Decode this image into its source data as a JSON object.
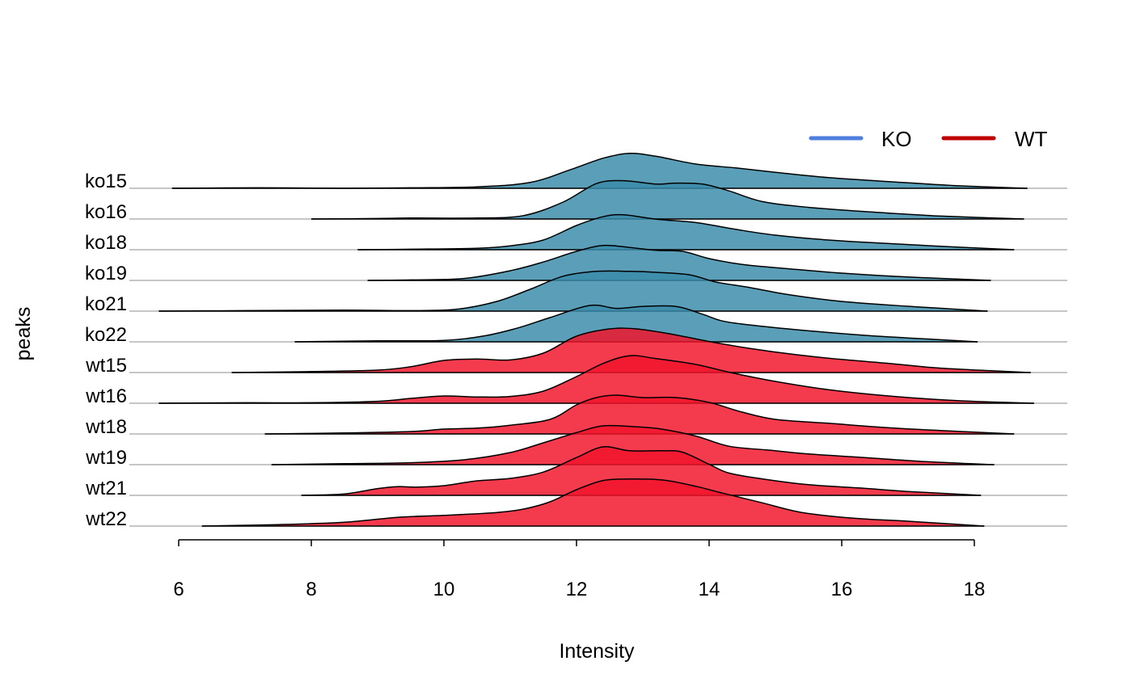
{
  "chart_data": {
    "type": "ridgeline",
    "xlabel": "Intensity",
    "ylabel": "peaks",
    "xlim": [
      5.75,
      19.45
    ],
    "xticks": [
      6,
      8,
      10,
      12,
      14,
      16,
      18
    ],
    "grid": false,
    "legend_position": "top-right",
    "legend": [
      {
        "name": "KO",
        "color": "#4f7fde"
      },
      {
        "name": "WT",
        "color": "#c00000"
      }
    ],
    "group_fill": {
      "KO": "#3a8aa8",
      "WT": "#f2132a"
    },
    "rows": [
      {
        "name": "ko15",
        "group": "KO",
        "range": [
          5.9,
          18.8
        ],
        "points": [
          [
            5.9,
            0
          ],
          [
            7.2,
            0.01
          ],
          [
            8.5,
            0
          ],
          [
            9.5,
            0.01
          ],
          [
            10.5,
            0.03
          ],
          [
            11.3,
            0.12
          ],
          [
            11.9,
            0.38
          ],
          [
            12.4,
            0.62
          ],
          [
            12.8,
            0.72
          ],
          [
            13.2,
            0.66
          ],
          [
            13.8,
            0.5
          ],
          [
            14.4,
            0.42
          ],
          [
            15.0,
            0.33
          ],
          [
            15.8,
            0.22
          ],
          [
            16.8,
            0.13
          ],
          [
            17.8,
            0.05
          ],
          [
            18.8,
            0
          ]
        ]
      },
      {
        "name": "ko16",
        "group": "KO",
        "range": [
          8.0,
          18.75
        ],
        "points": [
          [
            8.0,
            0
          ],
          [
            9.0,
            0.01
          ],
          [
            9.5,
            0.02
          ],
          [
            10.5,
            0.02
          ],
          [
            11.2,
            0.07
          ],
          [
            11.8,
            0.35
          ],
          [
            12.3,
            0.73
          ],
          [
            12.7,
            0.79
          ],
          [
            13.2,
            0.72
          ],
          [
            13.5,
            0.74
          ],
          [
            13.9,
            0.72
          ],
          [
            14.3,
            0.58
          ],
          [
            14.8,
            0.36
          ],
          [
            15.5,
            0.24
          ],
          [
            16.5,
            0.14
          ],
          [
            17.5,
            0.06
          ],
          [
            18.75,
            0
          ]
        ]
      },
      {
        "name": "ko18",
        "group": "KO",
        "range": [
          8.7,
          18.6
        ],
        "points": [
          [
            8.7,
            0
          ],
          [
            9.5,
            0.01
          ],
          [
            10.5,
            0.03
          ],
          [
            11.0,
            0.08
          ],
          [
            11.5,
            0.2
          ],
          [
            12.0,
            0.5
          ],
          [
            12.4,
            0.68
          ],
          [
            12.7,
            0.72
          ],
          [
            13.2,
            0.63
          ],
          [
            13.8,
            0.56
          ],
          [
            14.4,
            0.42
          ],
          [
            15.0,
            0.3
          ],
          [
            15.8,
            0.2
          ],
          [
            16.8,
            0.12
          ],
          [
            17.8,
            0.05
          ],
          [
            18.6,
            0
          ]
        ]
      },
      {
        "name": "ko19",
        "group": "KO",
        "range": [
          8.85,
          18.25
        ],
        "points": [
          [
            8.85,
            0
          ],
          [
            9.5,
            0.01
          ],
          [
            10.3,
            0.04
          ],
          [
            11.0,
            0.2
          ],
          [
            11.5,
            0.38
          ],
          [
            12.0,
            0.6
          ],
          [
            12.4,
            0.72
          ],
          [
            12.8,
            0.68
          ],
          [
            13.2,
            0.62
          ],
          [
            13.6,
            0.6
          ],
          [
            14.0,
            0.45
          ],
          [
            14.5,
            0.33
          ],
          [
            15.2,
            0.24
          ],
          [
            16.0,
            0.15
          ],
          [
            17.0,
            0.07
          ],
          [
            18.25,
            0
          ]
        ]
      },
      {
        "name": "ko21",
        "group": "KO",
        "range": [
          5.7,
          18.2
        ],
        "points": [
          [
            5.7,
            0
          ],
          [
            7.0,
            0.01
          ],
          [
            8.5,
            0.02
          ],
          [
            9.5,
            0.01
          ],
          [
            10.2,
            0.04
          ],
          [
            10.8,
            0.2
          ],
          [
            11.3,
            0.45
          ],
          [
            11.8,
            0.72
          ],
          [
            12.3,
            0.82
          ],
          [
            12.8,
            0.82
          ],
          [
            13.2,
            0.8
          ],
          [
            13.7,
            0.75
          ],
          [
            14.1,
            0.6
          ],
          [
            14.6,
            0.49
          ],
          [
            15.2,
            0.34
          ],
          [
            16.0,
            0.2
          ],
          [
            17.0,
            0.1
          ],
          [
            18.2,
            0
          ]
        ]
      },
      {
        "name": "ko22",
        "group": "KO",
        "range": [
          7.75,
          18.05
        ],
        "points": [
          [
            7.75,
            0
          ],
          [
            9.0,
            0.02
          ],
          [
            10.0,
            0.03
          ],
          [
            10.6,
            0.12
          ],
          [
            11.1,
            0.28
          ],
          [
            11.6,
            0.5
          ],
          [
            12.2,
            0.75
          ],
          [
            12.6,
            0.69
          ],
          [
            13.0,
            0.73
          ],
          [
            13.5,
            0.73
          ],
          [
            13.9,
            0.57
          ],
          [
            14.2,
            0.43
          ],
          [
            14.6,
            0.35
          ],
          [
            15.4,
            0.24
          ],
          [
            16.4,
            0.13
          ],
          [
            17.4,
            0.05
          ],
          [
            18.05,
            0
          ]
        ]
      },
      {
        "name": "wt15",
        "group": "WT",
        "range": [
          6.8,
          18.85
        ],
        "points": [
          [
            6.8,
            0
          ],
          [
            8.0,
            0.02
          ],
          [
            9.0,
            0.05
          ],
          [
            9.5,
            0.12
          ],
          [
            10.0,
            0.25
          ],
          [
            10.5,
            0.28
          ],
          [
            11.0,
            0.26
          ],
          [
            11.5,
            0.4
          ],
          [
            12.0,
            0.75
          ],
          [
            12.5,
            0.9
          ],
          [
            12.9,
            0.9
          ],
          [
            13.4,
            0.8
          ],
          [
            14.0,
            0.64
          ],
          [
            14.6,
            0.5
          ],
          [
            15.3,
            0.37
          ],
          [
            16.0,
            0.27
          ],
          [
            16.7,
            0.19
          ],
          [
            17.5,
            0.09
          ],
          [
            18.85,
            0
          ]
        ]
      },
      {
        "name": "wt16",
        "group": "WT",
        "range": [
          5.7,
          18.9
        ],
        "points": [
          [
            5.7,
            0
          ],
          [
            7.0,
            0.01
          ],
          [
            8.0,
            0.01
          ],
          [
            9.0,
            0.04
          ],
          [
            9.5,
            0.1
          ],
          [
            10.0,
            0.15
          ],
          [
            10.5,
            0.13
          ],
          [
            11.0,
            0.14
          ],
          [
            11.5,
            0.25
          ],
          [
            12.0,
            0.55
          ],
          [
            12.4,
            0.82
          ],
          [
            12.8,
            0.98
          ],
          [
            13.2,
            0.92
          ],
          [
            13.8,
            0.8
          ],
          [
            14.3,
            0.64
          ],
          [
            15.0,
            0.45
          ],
          [
            15.8,
            0.28
          ],
          [
            16.8,
            0.14
          ],
          [
            17.8,
            0.05
          ],
          [
            18.9,
            0
          ]
        ]
      },
      {
        "name": "wt18",
        "group": "WT",
        "range": [
          7.3,
          18.6
        ],
        "points": [
          [
            7.3,
            0
          ],
          [
            8.5,
            0.02
          ],
          [
            9.5,
            0.05
          ],
          [
            10.0,
            0.1
          ],
          [
            10.5,
            0.12
          ],
          [
            11.0,
            0.18
          ],
          [
            11.6,
            0.3
          ],
          [
            12.0,
            0.6
          ],
          [
            12.3,
            0.75
          ],
          [
            12.6,
            0.8
          ],
          [
            13.0,
            0.75
          ],
          [
            13.5,
            0.75
          ],
          [
            14.0,
            0.65
          ],
          [
            14.5,
            0.45
          ],
          [
            15.0,
            0.3
          ],
          [
            15.8,
            0.22
          ],
          [
            16.8,
            0.12
          ],
          [
            17.8,
            0.05
          ],
          [
            18.6,
            0
          ]
        ]
      },
      {
        "name": "wt19",
        "group": "WT",
        "range": [
          7.4,
          18.3
        ],
        "points": [
          [
            7.4,
            0
          ],
          [
            8.5,
            0.02
          ],
          [
            9.5,
            0.04
          ],
          [
            10.3,
            0.1
          ],
          [
            11.0,
            0.25
          ],
          [
            11.5,
            0.45
          ],
          [
            12.0,
            0.66
          ],
          [
            12.4,
            0.8
          ],
          [
            12.9,
            0.78
          ],
          [
            13.3,
            0.73
          ],
          [
            13.8,
            0.59
          ],
          [
            14.3,
            0.38
          ],
          [
            14.9,
            0.3
          ],
          [
            15.5,
            0.22
          ],
          [
            16.3,
            0.15
          ],
          [
            17.3,
            0.06
          ],
          [
            18.3,
            0
          ]
        ]
      },
      {
        "name": "wt21",
        "group": "WT",
        "range": [
          7.85,
          18.1
        ],
        "points": [
          [
            7.85,
            0
          ],
          [
            8.5,
            0.03
          ],
          [
            9.0,
            0.14
          ],
          [
            9.3,
            0.18
          ],
          [
            9.6,
            0.17
          ],
          [
            10.0,
            0.2
          ],
          [
            10.5,
            0.3
          ],
          [
            11.0,
            0.35
          ],
          [
            11.5,
            0.48
          ],
          [
            12.0,
            0.78
          ],
          [
            12.4,
            1.0
          ],
          [
            12.8,
            0.92
          ],
          [
            13.3,
            0.92
          ],
          [
            13.6,
            0.89
          ],
          [
            14.0,
            0.64
          ],
          [
            14.3,
            0.46
          ],
          [
            14.8,
            0.34
          ],
          [
            15.5,
            0.22
          ],
          [
            16.3,
            0.15
          ],
          [
            17.0,
            0.08
          ],
          [
            18.1,
            0
          ]
        ]
      },
      {
        "name": "wt22",
        "group": "WT",
        "range": [
          6.35,
          18.15
        ],
        "points": [
          [
            6.35,
            0
          ],
          [
            7.5,
            0.03
          ],
          [
            8.5,
            0.08
          ],
          [
            9.3,
            0.18
          ],
          [
            10.0,
            0.22
          ],
          [
            10.8,
            0.28
          ],
          [
            11.2,
            0.35
          ],
          [
            11.6,
            0.5
          ],
          [
            12.0,
            0.75
          ],
          [
            12.4,
            0.94
          ],
          [
            12.8,
            0.97
          ],
          [
            13.3,
            0.95
          ],
          [
            13.8,
            0.82
          ],
          [
            14.2,
            0.68
          ],
          [
            14.8,
            0.48
          ],
          [
            15.4,
            0.28
          ],
          [
            16.2,
            0.16
          ],
          [
            17.0,
            0.1
          ],
          [
            18.15,
            0
          ]
        ]
      }
    ]
  }
}
